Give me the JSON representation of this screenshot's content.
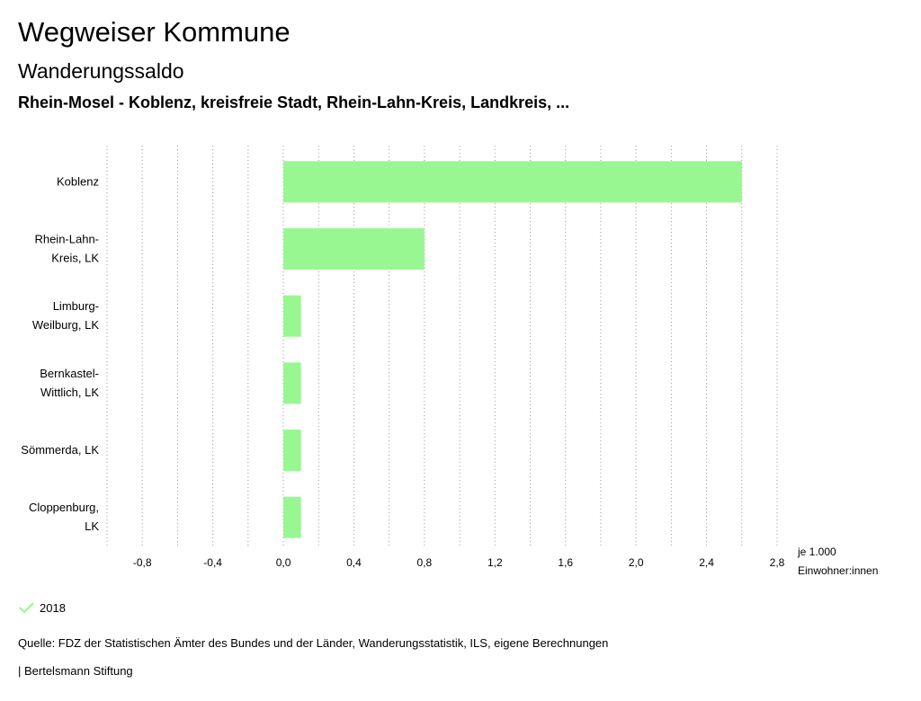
{
  "header": {
    "title": "Wegweiser Kommune",
    "subtitle": "Wanderungssaldo",
    "region": "Rhein-Mosel - Koblenz, kreisfreie Stadt, Rhein-Lahn-Kreis, Landkreis, ..."
  },
  "chart_data": {
    "type": "bar",
    "orientation": "horizontal",
    "categories": [
      [
        "Koblenz"
      ],
      [
        "Rhein-Lahn-",
        "Kreis, LK"
      ],
      [
        "Limburg-",
        "Weilburg, LK"
      ],
      [
        "Bernkastel-",
        "Wittlich, LK"
      ],
      [
        "Sömmerda, LK"
      ],
      [
        "Cloppenburg,",
        "LK"
      ]
    ],
    "series": [
      {
        "name": "2018",
        "color": "#99f791",
        "values": [
          2.6,
          0.8,
          0.1,
          0.1,
          0.1,
          0.1
        ]
      }
    ],
    "xlim": [
      -1.0,
      2.8
    ],
    "xticks": [
      -0.8,
      -0.4,
      0.0,
      0.4,
      0.8,
      1.2,
      1.6,
      2.0,
      2.4,
      2.8
    ],
    "xtick_labels": [
      "-0,8",
      "-0,4",
      "0,0",
      "0,4",
      "0,8",
      "1,2",
      "1,6",
      "2,0",
      "2,4",
      "2,8"
    ],
    "unit_label": [
      "je 1.000",
      "Einwohner:innen"
    ],
    "grid": true,
    "legend_position": "bottom-left"
  },
  "legend": {
    "items": [
      {
        "label": "2018",
        "color": "#99f791",
        "icon": "check-icon"
      }
    ]
  },
  "footer": {
    "source": "Quelle: FDZ der Statistischen Ämter des Bundes und der Länder, Wanderungsstatistik, ILS, eigene Berechnungen",
    "publisher": "| Bertelsmann Stiftung"
  }
}
